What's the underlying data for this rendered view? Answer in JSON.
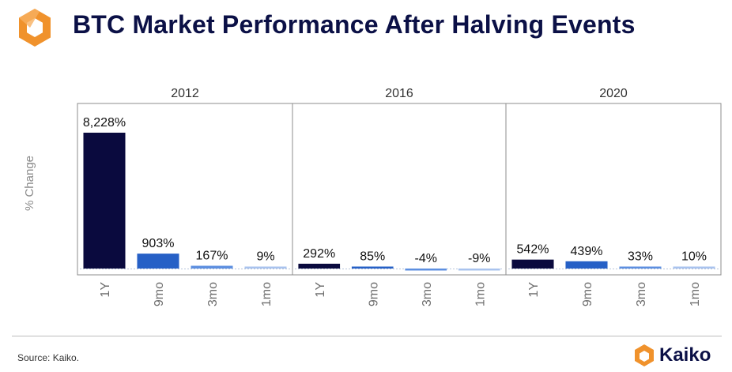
{
  "header": {
    "title": "BTC Market Performance After Halving Events",
    "logo_icon": "kaiko-hexagon-logo-icon"
  },
  "footer": {
    "source": "Source: Kaiko.",
    "brand_name": "Kaiko",
    "brand_icon": "kaiko-hexagon-logo-icon"
  },
  "colors": {
    "logo_orange": "#f0922c",
    "title_navy": "#0b1046",
    "bar_1y": "#0a0a3e",
    "bar_9mo": "#2660c6",
    "bar_3mo": "#5d8fe0",
    "bar_1mo": "#a9c3ee",
    "panel_border": "#8c8c8c"
  },
  "chart_data": {
    "type": "bar",
    "ylabel": "% Change",
    "grid": false,
    "panels": [
      {
        "name": "2012",
        "categories": [
          "1Y",
          "9mo",
          "3mo",
          "1mo"
        ],
        "values": [
          8228,
          903,
          167,
          9
        ],
        "labels": [
          "8,228%",
          "903%",
          "167%",
          "9%"
        ]
      },
      {
        "name": "2016",
        "categories": [
          "1Y",
          "9mo",
          "3mo",
          "1mo"
        ],
        "values": [
          292,
          85,
          -4,
          -9
        ],
        "labels": [
          "292%",
          "85%",
          "-4%",
          "-9%"
        ]
      },
      {
        "name": "2020",
        "categories": [
          "1Y",
          "9mo",
          "3mo",
          "1mo"
        ],
        "values": [
          542,
          439,
          33,
          10
        ],
        "labels": [
          "542%",
          "439%",
          "33%",
          "10%"
        ]
      }
    ],
    "ylim": [
      -60,
      8228
    ]
  }
}
